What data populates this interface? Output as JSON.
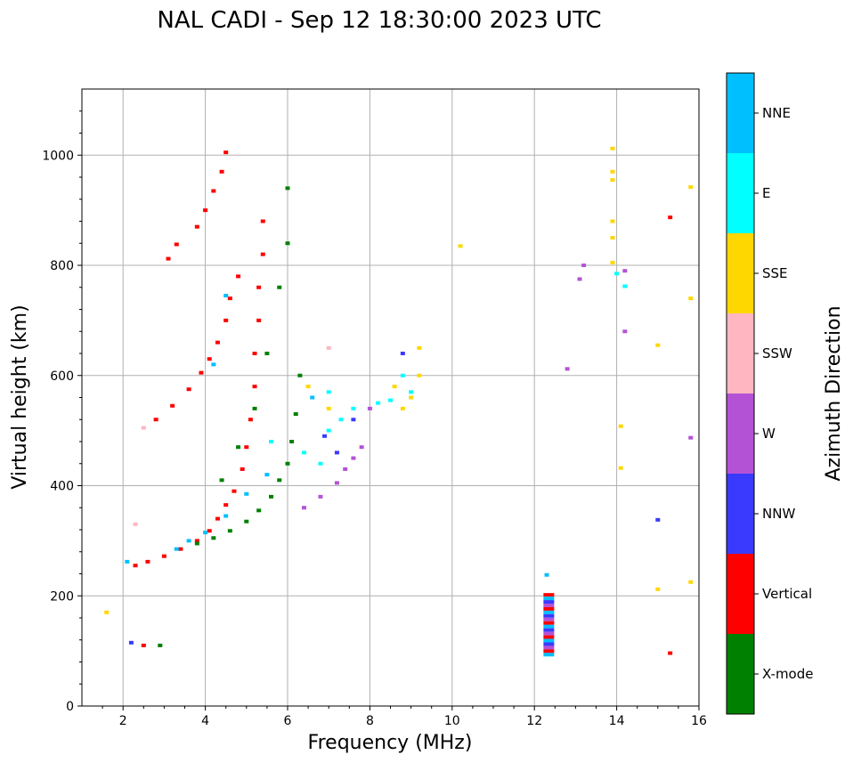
{
  "chart_data": {
    "type": "scatter",
    "title": "NAL CADI - Sep 12 18:30:00 2023 UTC",
    "xlabel": "Frequency (MHz)",
    "ylabel": "Virtual height (km)",
    "xlim": [
      1,
      16
    ],
    "ylim": [
      0,
      1120
    ],
    "xticks": [
      2,
      4,
      6,
      8,
      10,
      12,
      14,
      16
    ],
    "yticks": [
      0,
      200,
      400,
      600,
      800,
      1000
    ],
    "grid": true,
    "colorbar": {
      "label": "Azimuth Direction",
      "categories": [
        {
          "name": "X-mode",
          "color": "#008000"
        },
        {
          "name": "Vertical",
          "color": "#ff0000"
        },
        {
          "name": "NNW",
          "color": "#3a3aff"
        },
        {
          "name": "W",
          "color": "#b452d6"
        },
        {
          "name": "SSW",
          "color": "#ffb6c1"
        },
        {
          "name": "SSE",
          "color": "#ffd700"
        },
        {
          "name": "E",
          "color": "#00ffff"
        },
        {
          "name": "NNE",
          "color": "#00bfff"
        }
      ]
    },
    "traces": [
      {
        "direction": "Vertical",
        "points": [
          [
            2.3,
            255
          ],
          [
            2.6,
            262
          ],
          [
            3.0,
            272
          ],
          [
            3.4,
            285
          ],
          [
            3.8,
            300
          ],
          [
            4.1,
            318
          ],
          [
            4.3,
            340
          ],
          [
            4.5,
            365
          ],
          [
            4.7,
            390
          ],
          [
            4.9,
            430
          ],
          [
            5.0,
            470
          ],
          [
            5.1,
            520
          ],
          [
            5.2,
            580
          ],
          [
            5.2,
            640
          ],
          [
            5.3,
            700
          ],
          [
            5.3,
            760
          ],
          [
            5.4,
            820
          ],
          [
            5.4,
            880
          ],
          [
            2.8,
            520
          ],
          [
            3.2,
            545
          ],
          [
            3.6,
            575
          ],
          [
            3.9,
            605
          ],
          [
            4.1,
            630
          ],
          [
            4.3,
            660
          ],
          [
            4.5,
            700
          ],
          [
            4.6,
            740
          ],
          [
            4.8,
            780
          ],
          [
            3.3,
            838
          ],
          [
            3.8,
            870
          ],
          [
            4.0,
            900
          ],
          [
            4.2,
            935
          ],
          [
            4.4,
            970
          ],
          [
            4.5,
            1005
          ],
          [
            15.3,
            887
          ],
          [
            15.3,
            96
          ],
          [
            2.5,
            110
          ],
          [
            3.1,
            812
          ]
        ]
      },
      {
        "direction": "X-mode",
        "points": [
          [
            3.8,
            295
          ],
          [
            4.2,
            305
          ],
          [
            4.6,
            318
          ],
          [
            5.0,
            335
          ],
          [
            5.3,
            355
          ],
          [
            5.6,
            380
          ],
          [
            5.8,
            410
          ],
          [
            6.0,
            440
          ],
          [
            6.1,
            480
          ],
          [
            6.2,
            530
          ],
          [
            6.3,
            600
          ],
          [
            4.4,
            410
          ],
          [
            4.8,
            470
          ],
          [
            5.2,
            540
          ],
          [
            5.5,
            640
          ],
          [
            5.8,
            760
          ],
          [
            6.0,
            840
          ],
          [
            6.0,
            940
          ],
          [
            2.9,
            110
          ]
        ]
      },
      {
        "direction": "NNW",
        "points": [
          [
            6.9,
            490
          ],
          [
            7.2,
            460
          ],
          [
            7.6,
            520
          ],
          [
            8.8,
            640
          ],
          [
            15.0,
            338
          ],
          [
            2.2,
            115
          ]
        ]
      },
      {
        "direction": "W",
        "points": [
          [
            6.4,
            360
          ],
          [
            6.8,
            380
          ],
          [
            7.2,
            405
          ],
          [
            7.4,
            430
          ],
          [
            7.6,
            450
          ],
          [
            7.8,
            470
          ],
          [
            8.0,
            540
          ],
          [
            12.8,
            612
          ],
          [
            13.1,
            775
          ],
          [
            13.2,
            800
          ],
          [
            14.2,
            680
          ],
          [
            14.2,
            790
          ],
          [
            15.8,
            487
          ]
        ]
      },
      {
        "direction": "SSW",
        "points": [
          [
            2.5,
            505
          ],
          [
            7.0,
            650
          ],
          [
            2.3,
            330
          ]
        ]
      },
      {
        "direction": "SSE",
        "points": [
          [
            8.8,
            540
          ],
          [
            9.0,
            560
          ],
          [
            9.2,
            600
          ],
          [
            9.2,
            650
          ],
          [
            8.6,
            580
          ],
          [
            10.2,
            835
          ],
          [
            13.9,
            1012
          ],
          [
            13.9,
            970
          ],
          [
            13.9,
            955
          ],
          [
            13.9,
            880
          ],
          [
            13.9,
            850
          ],
          [
            13.9,
            805
          ],
          [
            14.1,
            508
          ],
          [
            14.1,
            432
          ],
          [
            15.0,
            655
          ],
          [
            15.0,
            212
          ],
          [
            15.8,
            942
          ],
          [
            15.8,
            740
          ],
          [
            15.8,
            225
          ],
          [
            1.6,
            170
          ],
          [
            6.5,
            580
          ],
          [
            7.0,
            540
          ]
        ]
      },
      {
        "direction": "E",
        "points": [
          [
            7.0,
            570
          ],
          [
            7.0,
            500
          ],
          [
            7.3,
            520
          ],
          [
            7.6,
            540
          ],
          [
            8.2,
            550
          ],
          [
            8.5,
            555
          ],
          [
            8.8,
            600
          ],
          [
            9.0,
            570
          ],
          [
            14.0,
            785
          ],
          [
            14.2,
            762
          ],
          [
            6.4,
            460
          ],
          [
            5.6,
            480
          ],
          [
            6.8,
            440
          ]
        ]
      },
      {
        "direction": "NNE",
        "points": [
          [
            3.3,
            285
          ],
          [
            3.6,
            300
          ],
          [
            4.0,
            315
          ],
          [
            4.5,
            345
          ],
          [
            5.0,
            385
          ],
          [
            5.5,
            420
          ],
          [
            6.6,
            560
          ],
          [
            12.3,
            238
          ],
          [
            12.3,
            150
          ],
          [
            2.1,
            262
          ],
          [
            4.2,
            620
          ],
          [
            4.5,
            745
          ]
        ]
      }
    ],
    "column_bands": [
      {
        "x": 12.35,
        "y_min": 90,
        "y_max": 205,
        "direction": "Vertical",
        "stripes": [
          "Vertical",
          "NNE",
          "NNW",
          "W"
        ]
      }
    ]
  }
}
